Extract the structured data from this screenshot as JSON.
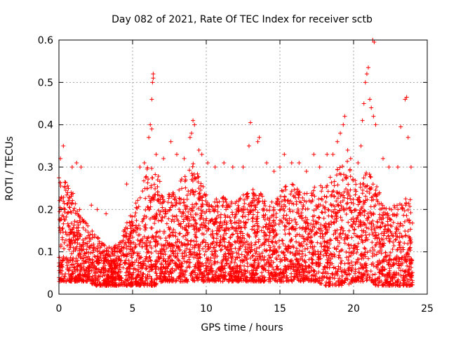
{
  "chart_data": {
    "type": "scatter",
    "title": "Day 082 of 2021, Rate Of TEC Index for receiver sctb",
    "xlabel": "GPS time / hours",
    "ylabel": "ROTI / TECUs",
    "xlim": [
      0,
      25
    ],
    "ylim": [
      0,
      0.6
    ],
    "xticks": [
      0,
      5,
      10,
      15,
      20,
      25
    ],
    "yticks": [
      0,
      0.1,
      0.2,
      0.3,
      0.4,
      0.5,
      0.6
    ],
    "xtick_labels": [
      "0",
      "5",
      "10",
      "15",
      "20",
      "25"
    ],
    "ytick_labels": [
      "0",
      "0.1",
      "0.2",
      "0.3",
      "0.4",
      "0.5",
      "0.6"
    ],
    "grid": true,
    "marker": "plus",
    "color": "#ff0000",
    "x_data_range": [
      0,
      24
    ],
    "envelope": [
      [
        0.0,
        0.03,
        0.3
      ],
      [
        0.5,
        0.03,
        0.26
      ],
      [
        1.0,
        0.03,
        0.24
      ],
      [
        1.5,
        0.03,
        0.2
      ],
      [
        2.0,
        0.03,
        0.16
      ],
      [
        2.5,
        0.02,
        0.14
      ],
      [
        3.0,
        0.02,
        0.12
      ],
      [
        3.5,
        0.02,
        0.11
      ],
      [
        4.0,
        0.02,
        0.12
      ],
      [
        4.5,
        0.02,
        0.16
      ],
      [
        5.0,
        0.02,
        0.2
      ],
      [
        5.5,
        0.02,
        0.24
      ],
      [
        6.0,
        0.02,
        0.3
      ],
      [
        6.5,
        0.02,
        0.3
      ],
      [
        7.0,
        0.03,
        0.26
      ],
      [
        7.5,
        0.03,
        0.24
      ],
      [
        8.0,
        0.03,
        0.26
      ],
      [
        8.5,
        0.03,
        0.28
      ],
      [
        9.0,
        0.03,
        0.32
      ],
      [
        9.5,
        0.03,
        0.28
      ],
      [
        10.0,
        0.03,
        0.24
      ],
      [
        10.5,
        0.03,
        0.22
      ],
      [
        11.0,
        0.03,
        0.24
      ],
      [
        11.5,
        0.03,
        0.22
      ],
      [
        12.0,
        0.03,
        0.22
      ],
      [
        12.5,
        0.03,
        0.24
      ],
      [
        13.0,
        0.03,
        0.24
      ],
      [
        13.5,
        0.03,
        0.26
      ],
      [
        14.0,
        0.03,
        0.22
      ],
      [
        14.5,
        0.03,
        0.22
      ],
      [
        15.0,
        0.03,
        0.24
      ],
      [
        15.5,
        0.03,
        0.26
      ],
      [
        16.0,
        0.03,
        0.26
      ],
      [
        16.5,
        0.03,
        0.24
      ],
      [
        17.0,
        0.03,
        0.24
      ],
      [
        17.5,
        0.03,
        0.26
      ],
      [
        18.0,
        0.02,
        0.26
      ],
      [
        18.5,
        0.02,
        0.28
      ],
      [
        19.0,
        0.02,
        0.3
      ],
      [
        19.5,
        0.02,
        0.32
      ],
      [
        20.0,
        0.03,
        0.28
      ],
      [
        20.5,
        0.03,
        0.26
      ],
      [
        21.0,
        0.03,
        0.3
      ],
      [
        21.5,
        0.02,
        0.26
      ],
      [
        22.0,
        0.02,
        0.22
      ],
      [
        22.5,
        0.02,
        0.2
      ],
      [
        23.0,
        0.02,
        0.22
      ],
      [
        23.5,
        0.02,
        0.24
      ],
      [
        24.0,
        0.02,
        0.22
      ]
    ],
    "points": [
      [
        0.1,
        0.32
      ],
      [
        0.3,
        0.35
      ],
      [
        0.9,
        0.3
      ],
      [
        1.2,
        0.31
      ],
      [
        1.5,
        0.3
      ],
      [
        2.2,
        0.21
      ],
      [
        2.6,
        0.2
      ],
      [
        3.2,
        0.19
      ],
      [
        4.6,
        0.26
      ],
      [
        5.5,
        0.3
      ],
      [
        5.8,
        0.31
      ],
      [
        6.1,
        0.37
      ],
      [
        6.2,
        0.4
      ],
      [
        6.3,
        0.39
      ],
      [
        6.3,
        0.46
      ],
      [
        6.35,
        0.5
      ],
      [
        6.4,
        0.51
      ],
      [
        6.4,
        0.52
      ],
      [
        6.6,
        0.33
      ],
      [
        7.1,
        0.32
      ],
      [
        7.6,
        0.36
      ],
      [
        8.0,
        0.33
      ],
      [
        8.5,
        0.32
      ],
      [
        8.9,
        0.37
      ],
      [
        9.0,
        0.38
      ],
      [
        9.1,
        0.41
      ],
      [
        9.2,
        0.4
      ],
      [
        9.5,
        0.34
      ],
      [
        9.7,
        0.33
      ],
      [
        10.1,
        0.31
      ],
      [
        10.6,
        0.3
      ],
      [
        11.2,
        0.31
      ],
      [
        11.8,
        0.3
      ],
      [
        12.5,
        0.3
      ],
      [
        12.9,
        0.35
      ],
      [
        13.0,
        0.405
      ],
      [
        13.5,
        0.36
      ],
      [
        13.6,
        0.37
      ],
      [
        14.1,
        0.31
      ],
      [
        14.6,
        0.29
      ],
      [
        15.0,
        0.3
      ],
      [
        15.3,
        0.33
      ],
      [
        15.8,
        0.31
      ],
      [
        16.3,
        0.31
      ],
      [
        16.8,
        0.29
      ],
      [
        17.3,
        0.33
      ],
      [
        17.7,
        0.3
      ],
      [
        18.2,
        0.33
      ],
      [
        18.6,
        0.33
      ],
      [
        18.9,
        0.36
      ],
      [
        19.1,
        0.38
      ],
      [
        19.3,
        0.4
      ],
      [
        19.4,
        0.42
      ],
      [
        19.6,
        0.34
      ],
      [
        19.8,
        0.32
      ],
      [
        20.3,
        0.31
      ],
      [
        20.5,
        0.35
      ],
      [
        20.6,
        0.41
      ],
      [
        20.7,
        0.45
      ],
      [
        20.8,
        0.5
      ],
      [
        20.9,
        0.52
      ],
      [
        21.0,
        0.535
      ],
      [
        21.1,
        0.46
      ],
      [
        21.2,
        0.44
      ],
      [
        21.3,
        0.6
      ],
      [
        21.35,
        0.42
      ],
      [
        21.4,
        0.595
      ],
      [
        21.5,
        0.4
      ],
      [
        22.0,
        0.32
      ],
      [
        22.4,
        0.3
      ],
      [
        23.0,
        0.3
      ],
      [
        23.2,
        0.395
      ],
      [
        23.5,
        0.46
      ],
      [
        23.6,
        0.465
      ],
      [
        23.7,
        0.37
      ],
      [
        23.9,
        0.3
      ]
    ]
  }
}
